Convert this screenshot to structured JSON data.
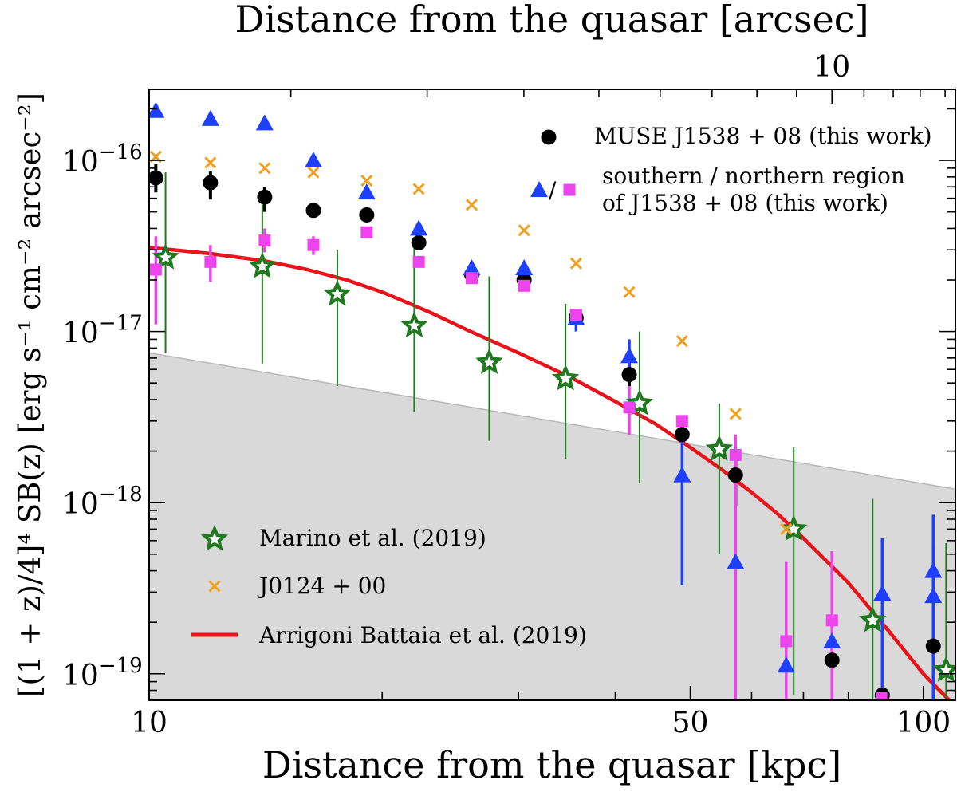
{
  "chart_data": {
    "type": "scatter",
    "xscale": "log",
    "yscale": "log",
    "xlim": [
      10,
      110
    ],
    "ylim": [
      7e-20,
      2.6e-16
    ],
    "xlabel": "Distance from the quasar [kpc]",
    "ylabel": "[(1 + z)/4]⁴ SB(z) [erg s⁻¹ cm⁻² arcsec⁻²]",
    "top_axis_label": "Distance from the quasar [arcsec]",
    "top_axis_ticks": [
      {
        "value": 10,
        "kpc": 76.2,
        "label": "10"
      }
    ],
    "x_tick_labels": [
      {
        "value": 10,
        "label": "10"
      },
      {
        "value": 50,
        "label": "50"
      },
      {
        "value": 100,
        "label": "100"
      }
    ],
    "y_tick_labels": [
      {
        "value": 1e-16,
        "base": "10",
        "exp": "−16"
      },
      {
        "value": 1e-17,
        "base": "10",
        "exp": "−17"
      },
      {
        "value": 1e-18,
        "base": "10",
        "exp": "−18"
      },
      {
        "value": 1e-19,
        "base": "10",
        "exp": "−19"
      }
    ],
    "shaded_region": {
      "color": "#d9d9d9",
      "upper_edge": [
        {
          "x": 10,
          "y": 7.5e-18
        },
        {
          "x": 110,
          "y": 1.2e-18
        }
      ]
    },
    "series": [
      {
        "name": "Marino et al. (2019)",
        "marker": "star",
        "color": "#1f7a1f",
        "points": [
          {
            "x": 10.5,
            "y": 2.7e-17,
            "ylo": 7.5e-18,
            "yhi": 8.5e-17
          },
          {
            "x": 14.0,
            "y": 2.4e-17,
            "ylo": 6.5e-18,
            "yhi": 5.5e-17
          },
          {
            "x": 17.5,
            "y": 1.65e-17,
            "ylo": 4.8e-18,
            "yhi": 3e-17
          },
          {
            "x": 22.0,
            "y": 1.08e-17,
            "ylo": 3.4e-18,
            "yhi": 3.5e-17
          },
          {
            "x": 27.5,
            "y": 6.6e-18,
            "ylo": 2.3e-18,
            "yhi": 2.1e-17
          },
          {
            "x": 34.5,
            "y": 5.3e-18,
            "ylo": 1.8e-18,
            "yhi": 1.45e-17
          },
          {
            "x": 43.0,
            "y": 3.8e-18,
            "ylo": 1.3e-18,
            "yhi": 1e-17
          },
          {
            "x": 54.5,
            "y": 2.05e-18,
            "ylo": 5e-19,
            "yhi": 3.8e-18
          },
          {
            "x": 68.0,
            "y": 7e-19,
            "ylo": 7.5e-20,
            "yhi": 2.1e-18
          },
          {
            "x": 86.0,
            "y": 2.05e-19,
            "ylo": 7e-20,
            "yhi": 1.05e-18
          },
          {
            "x": 107.0,
            "y": 1.05e-19,
            "ylo": 7e-20,
            "yhi": 5.8e-19
          }
        ]
      },
      {
        "name": "J0124 + 00",
        "marker": "x",
        "color": "#f0a020",
        "points": [
          {
            "x": 10.2,
            "y": 1.05e-16
          },
          {
            "x": 12.0,
            "y": 9.7e-17
          },
          {
            "x": 14.1,
            "y": 9e-17
          },
          {
            "x": 16.3,
            "y": 8.5e-17
          },
          {
            "x": 19.1,
            "y": 7.6e-17
          },
          {
            "x": 22.3,
            "y": 6.8e-17
          },
          {
            "x": 26.1,
            "y": 5.5e-17
          },
          {
            "x": 30.5,
            "y": 3.9e-17
          },
          {
            "x": 35.6,
            "y": 2.5e-17
          },
          {
            "x": 41.7,
            "y": 1.7e-17
          },
          {
            "x": 48.8,
            "y": 8.8e-18
          },
          {
            "x": 57.2,
            "y": 3.3e-18
          },
          {
            "x": 66.5,
            "y": 7e-19
          }
        ]
      },
      {
        "name": "MUSE J1538 + 08 (this work)",
        "marker": "circle",
        "color": "#000000",
        "points": [
          {
            "x": 10.2,
            "y": 7.9e-17,
            "ylo": 6.5e-17,
            "yhi": 9.5e-17
          },
          {
            "x": 12.0,
            "y": 7.4e-17,
            "ylo": 5.9e-17,
            "yhi": 8.6e-17
          },
          {
            "x": 14.1,
            "y": 6.1e-17,
            "ylo": 5e-17,
            "yhi": 7e-17
          },
          {
            "x": 16.3,
            "y": 5.1e-17
          },
          {
            "x": 19.1,
            "y": 4.8e-17
          },
          {
            "x": 22.3,
            "y": 3.3e-17
          },
          {
            "x": 26.1,
            "y": 2.15e-17
          },
          {
            "x": 30.5,
            "y": 2e-17
          },
          {
            "x": 35.6,
            "y": 1.2e-17
          },
          {
            "x": 41.7,
            "y": 5.6e-18,
            "ylo": 4.8e-18,
            "yhi": 6.5e-18
          },
          {
            "x": 48.8,
            "y": 2.5e-18
          },
          {
            "x": 57.2,
            "y": 1.45e-18,
            "ylo": 9.5e-19,
            "yhi": 1.9e-18
          },
          {
            "x": 76.2,
            "y": 1.2e-19
          },
          {
            "x": 88.5,
            "y": 7.5e-20
          },
          {
            "x": 103.0,
            "y": 1.45e-19
          }
        ]
      },
      {
        "name": "southern region of J1538 + 08 (this work)",
        "marker": "triangle",
        "color": "#1f3fff",
        "points": [
          {
            "x": 10.2,
            "y": 1.95e-16
          },
          {
            "x": 12.0,
            "y": 1.75e-16
          },
          {
            "x": 14.1,
            "y": 1.65e-16
          },
          {
            "x": 16.3,
            "y": 1e-16
          },
          {
            "x": 19.1,
            "y": 6.5e-17
          },
          {
            "x": 22.3,
            "y": 4e-17
          },
          {
            "x": 26.1,
            "y": 2.35e-17
          },
          {
            "x": 30.5,
            "y": 2.35e-17
          },
          {
            "x": 35.6,
            "y": 1.2e-17,
            "ylo": 1e-17,
            "yhi": 1.35e-17
          },
          {
            "x": 41.7,
            "y": 7.2e-18,
            "ylo": 5.5e-18,
            "yhi": 9e-18
          },
          {
            "x": 48.8,
            "y": 1.45e-18,
            "ylo": 3.3e-19,
            "yhi": 2.5e-18
          },
          {
            "x": 57.2,
            "y": 4.5e-19,
            "ylo": 7e-20,
            "yhi": 9e-19
          },
          {
            "x": 66.5,
            "y": 1.12e-19
          },
          {
            "x": 76.2,
            "y": 1.55e-19
          },
          {
            "x": 88.5,
            "y": 2.95e-19,
            "ylo": 7e-20,
            "yhi": 6.2e-19
          },
          {
            "x": 103.0,
            "y": 2.85e-19,
            "ylo": 7e-20,
            "yhi": 5.7e-19
          },
          {
            "x": 103.0,
            "y": 4e-19,
            "ylo": 7e-20,
            "yhi": 8.5e-19
          }
        ]
      },
      {
        "name": "northern region of J1538 + 08 (this work)",
        "marker": "square",
        "color": "#ee44ee",
        "points": [
          {
            "x": 10.2,
            "y": 2.3e-17,
            "ylo": 1.1e-17,
            "yhi": 3.6e-17
          },
          {
            "x": 12.0,
            "y": 2.55e-17,
            "ylo": 1.95e-17,
            "yhi": 3.2e-17
          },
          {
            "x": 14.1,
            "y": 3.4e-17,
            "ylo": 2.9e-17,
            "yhi": 4e-17
          },
          {
            "x": 16.3,
            "y": 3.2e-17,
            "ylo": 2.8e-17,
            "yhi": 3.6e-17
          },
          {
            "x": 19.1,
            "y": 3.8e-17
          },
          {
            "x": 22.3,
            "y": 2.55e-17
          },
          {
            "x": 26.1,
            "y": 2.05e-17
          },
          {
            "x": 30.5,
            "y": 1.85e-17
          },
          {
            "x": 35.6,
            "y": 1.25e-17
          },
          {
            "x": 41.7,
            "y": 3.6e-18,
            "ylo": 2.5e-18,
            "yhi": 4.8e-18
          },
          {
            "x": 48.8,
            "y": 3e-18
          },
          {
            "x": 57.2,
            "y": 1.9e-18,
            "ylo": 7e-20,
            "yhi": 2.5e-18
          },
          {
            "x": 66.5,
            "y": 1.55e-19,
            "ylo": 7e-20,
            "yhi": 4.5e-19
          },
          {
            "x": 76.2,
            "y": 2.05e-19,
            "ylo": 7e-20,
            "yhi": 5.2e-19
          },
          {
            "x": 88.5,
            "y": 7.2e-20
          }
        ]
      }
    ],
    "model_curve": {
      "name": "Arrigoni Battaia et al. (2019)",
      "color": "#e8141c",
      "points": [
        {
          "x": 10,
          "y": 3.1e-17
        },
        {
          "x": 12,
          "y": 2.85e-17
        },
        {
          "x": 14,
          "y": 2.6e-17
        },
        {
          "x": 16,
          "y": 2.3e-17
        },
        {
          "x": 18,
          "y": 2e-17
        },
        {
          "x": 20,
          "y": 1.7e-17
        },
        {
          "x": 23,
          "y": 1.3e-17
        },
        {
          "x": 26,
          "y": 1e-17
        },
        {
          "x": 30,
          "y": 7.5e-18
        },
        {
          "x": 35,
          "y": 5.4e-18
        },
        {
          "x": 40,
          "y": 3.9e-18
        },
        {
          "x": 45,
          "y": 2.9e-18
        },
        {
          "x": 50,
          "y": 2.1e-18
        },
        {
          "x": 55,
          "y": 1.55e-18
        },
        {
          "x": 60,
          "y": 1.15e-18
        },
        {
          "x": 65,
          "y": 8.5e-19
        },
        {
          "x": 70,
          "y": 6.2e-19
        },
        {
          "x": 80,
          "y": 3.4e-19
        },
        {
          "x": 90,
          "y": 1.8e-19
        },
        {
          "x": 100,
          "y": 1e-19
        },
        {
          "x": 108,
          "y": 7e-20
        }
      ]
    },
    "legend": {
      "upper_right": [
        {
          "series": "MUSE J1538 + 08 (this work)",
          "lines": [
            "MUSE J1538 + 08 (this work)"
          ]
        },
        {
          "series": "southern / northern region",
          "lines": [
            "southern / northern region",
            "of J1538 + 08 (this work)"
          ]
        }
      ],
      "lower_left": [
        {
          "series": "Marino et al. (2019)",
          "lines": [
            "Marino et al. (2019)"
          ]
        },
        {
          "series": "J0124 + 00",
          "lines": [
            "J0124 + 00"
          ]
        },
        {
          "series": "Arrigoni Battaia et al. (2019)",
          "lines": [
            "Arrigoni Battaia et al. (2019)"
          ]
        }
      ],
      "slash": "/"
    }
  }
}
